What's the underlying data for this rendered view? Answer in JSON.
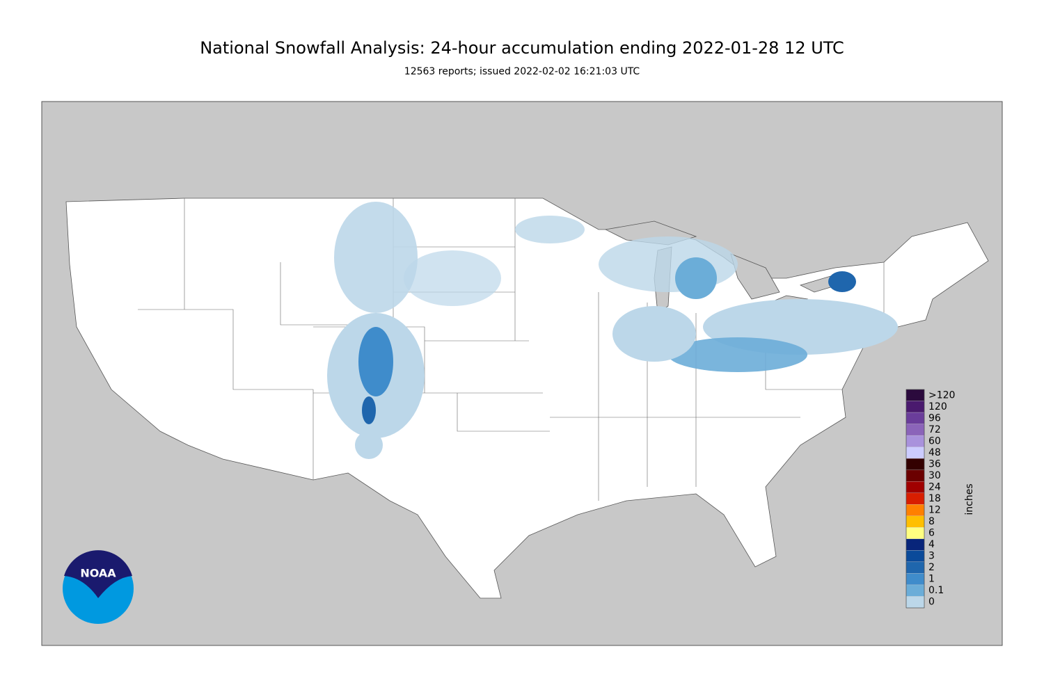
{
  "header": {
    "title": "National Snowfall Analysis: 24-hour accumulation ending 2022-01-28 12 UTC",
    "subtitle": "12563 reports; issued 2022-02-02 16:21:03 UTC"
  },
  "logo": {
    "text": "NOAA"
  },
  "legend": {
    "unit": "inches",
    "levels": [
      {
        "label": ">120",
        "color": "#2b0a3d"
      },
      {
        "label": "120",
        "color": "#4a1a6e"
      },
      {
        "label": "96",
        "color": "#6a3d9a"
      },
      {
        "label": "72",
        "color": "#8b64b9"
      },
      {
        "label": "60",
        "color": "#a992dc"
      },
      {
        "label": "48",
        "color": "#ccccff"
      },
      {
        "label": "36",
        "color": "#330000"
      },
      {
        "label": "30",
        "color": "#6b0000"
      },
      {
        "label": "24",
        "color": "#a00000"
      },
      {
        "label": "18",
        "color": "#d81e00"
      },
      {
        "label": "12",
        "color": "#ff8000"
      },
      {
        "label": "8",
        "color": "#ffbf00"
      },
      {
        "label": "6",
        "color": "#ffff80"
      },
      {
        "label": "4",
        "color": "#08257a"
      },
      {
        "label": "3",
        "color": "#0a4a9a"
      },
      {
        "label": "2",
        "color": "#1f66ad"
      },
      {
        "label": "1",
        "color": "#3f8ccb"
      },
      {
        "label": "0.1",
        "color": "#6badd8"
      },
      {
        "label": "0",
        "color": "#bcd7e9"
      }
    ]
  }
}
